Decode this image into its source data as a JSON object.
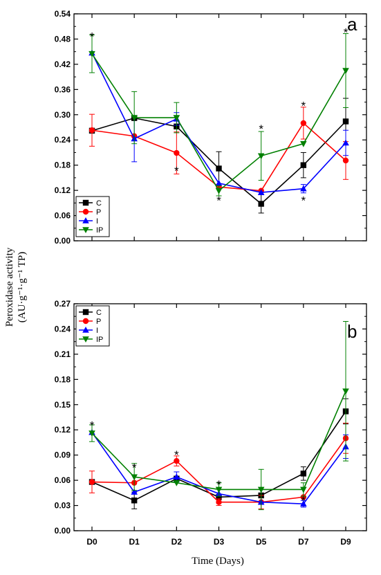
{
  "ylabel_line1": "Peroxidase activity",
  "ylabel_line2": "(AU·g⁻¹·g⁻¹ TP)",
  "xlabel": "Time (Days)",
  "chart_data": [
    {
      "type": "line",
      "panel": "a",
      "categories": [
        "D0",
        "D1",
        "D2",
        "D3",
        "D5",
        "D7",
        "D9"
      ],
      "ylim": [
        0,
        0.54
      ],
      "yticks": [
        "0.00",
        "0.06",
        "0.12",
        "0.18",
        "0.24",
        "0.30",
        "0.36",
        "0.42",
        "0.48",
        "0.54"
      ],
      "legend_position": "bottom-left",
      "grid": false,
      "series": [
        {
          "name": "C",
          "color": "#000000",
          "marker": "square",
          "values": [
            0.262,
            0.292,
            0.272,
            0.172,
            0.088,
            0.18,
            0.284
          ],
          "errors": [
            0.0,
            0.0,
            0.0,
            0.04,
            0.022,
            0.03,
            0.055
          ]
        },
        {
          "name": "P",
          "color": "#ff0000",
          "marker": "circle",
          "values": [
            0.263,
            0.249,
            0.209,
            0.128,
            0.119,
            0.28,
            0.191
          ],
          "errors": [
            0.038,
            0.0,
            0.05,
            0.0,
            0.0,
            0.038,
            0.045
          ]
        },
        {
          "name": "I",
          "color": "#0000ff",
          "marker": "triangle-up",
          "values": [
            0.447,
            0.243,
            0.29,
            0.137,
            0.115,
            0.124,
            0.233
          ],
          "errors": [
            0.0,
            0.055,
            0.015,
            0.0,
            0.0,
            0.01,
            0.03
          ]
        },
        {
          "name": "IP",
          "color": "#008000",
          "marker": "triangle-down",
          "values": [
            0.445,
            0.293,
            0.293,
            0.119,
            0.202,
            0.231,
            0.405
          ],
          "errors": [
            0.045,
            0.062,
            0.036,
            0.012,
            0.058,
            0.0,
            0.088
          ]
        }
      ],
      "significance_marks": [
        {
          "category": "D0",
          "value": 0.49,
          "text": "*"
        },
        {
          "category": "D2",
          "value": 0.17,
          "text": "*"
        },
        {
          "category": "D3",
          "value": 0.1,
          "text": "*"
        },
        {
          "category": "D5",
          "value": 0.27,
          "text": "*"
        },
        {
          "category": "D7",
          "value": 0.325,
          "text": "*"
        },
        {
          "category": "D7",
          "value": 0.1,
          "text": "*"
        },
        {
          "category": "D9",
          "value": 0.5,
          "text": "*"
        }
      ]
    },
    {
      "type": "line",
      "panel": "b",
      "categories": [
        "D0",
        "D1",
        "D2",
        "D3",
        "D5",
        "D7",
        "D9"
      ],
      "ylim": [
        0,
        0.27
      ],
      "yticks": [
        "0.00",
        "0.03",
        "0.06",
        "0.09",
        "0.12",
        "0.15",
        "0.18",
        "0.21",
        "0.24",
        "0.27"
      ],
      "legend_position": "top-left",
      "grid": false,
      "series": [
        {
          "name": "C",
          "color": "#000000",
          "marker": "square",
          "values": [
            0.058,
            0.036,
            0.062,
            0.04,
            0.042,
            0.068,
            0.142
          ],
          "errors": [
            0.0,
            0.01,
            0.0,
            0.0,
            0.0,
            0.008,
            0.015
          ]
        },
        {
          "name": "P",
          "color": "#ff0000",
          "marker": "circle",
          "values": [
            0.058,
            0.057,
            0.083,
            0.034,
            0.034,
            0.04,
            0.11
          ],
          "errors": [
            0.013,
            0.0,
            0.006,
            0.004,
            0.008,
            0.0,
            0.018
          ]
        },
        {
          "name": "I",
          "color": "#0000ff",
          "marker": "triangle-up",
          "values": [
            0.117,
            0.046,
            0.064,
            0.044,
            0.034,
            0.032,
            0.1
          ],
          "errors": [
            0.0,
            0.0,
            0.006,
            0.0,
            0.0,
            0.004,
            0.014
          ]
        },
        {
          "name": "IP",
          "color": "#008000",
          "marker": "triangle-down",
          "values": [
            0.116,
            0.064,
            0.057,
            0.049,
            0.049,
            0.049,
            0.166
          ],
          "errors": [
            0.01,
            0.016,
            0.0,
            0.008,
            0.024,
            0.008,
            0.083
          ]
        }
      ],
      "significance_marks": [
        {
          "category": "D0",
          "value": 0.127,
          "text": "*"
        },
        {
          "category": "D1",
          "value": 0.077,
          "text": "*"
        },
        {
          "category": "D2",
          "value": 0.092,
          "text": "*"
        },
        {
          "category": "D3",
          "value": 0.057,
          "text": "*"
        },
        {
          "category": "D7",
          "value": 0.038,
          "text": "*"
        }
      ]
    }
  ]
}
